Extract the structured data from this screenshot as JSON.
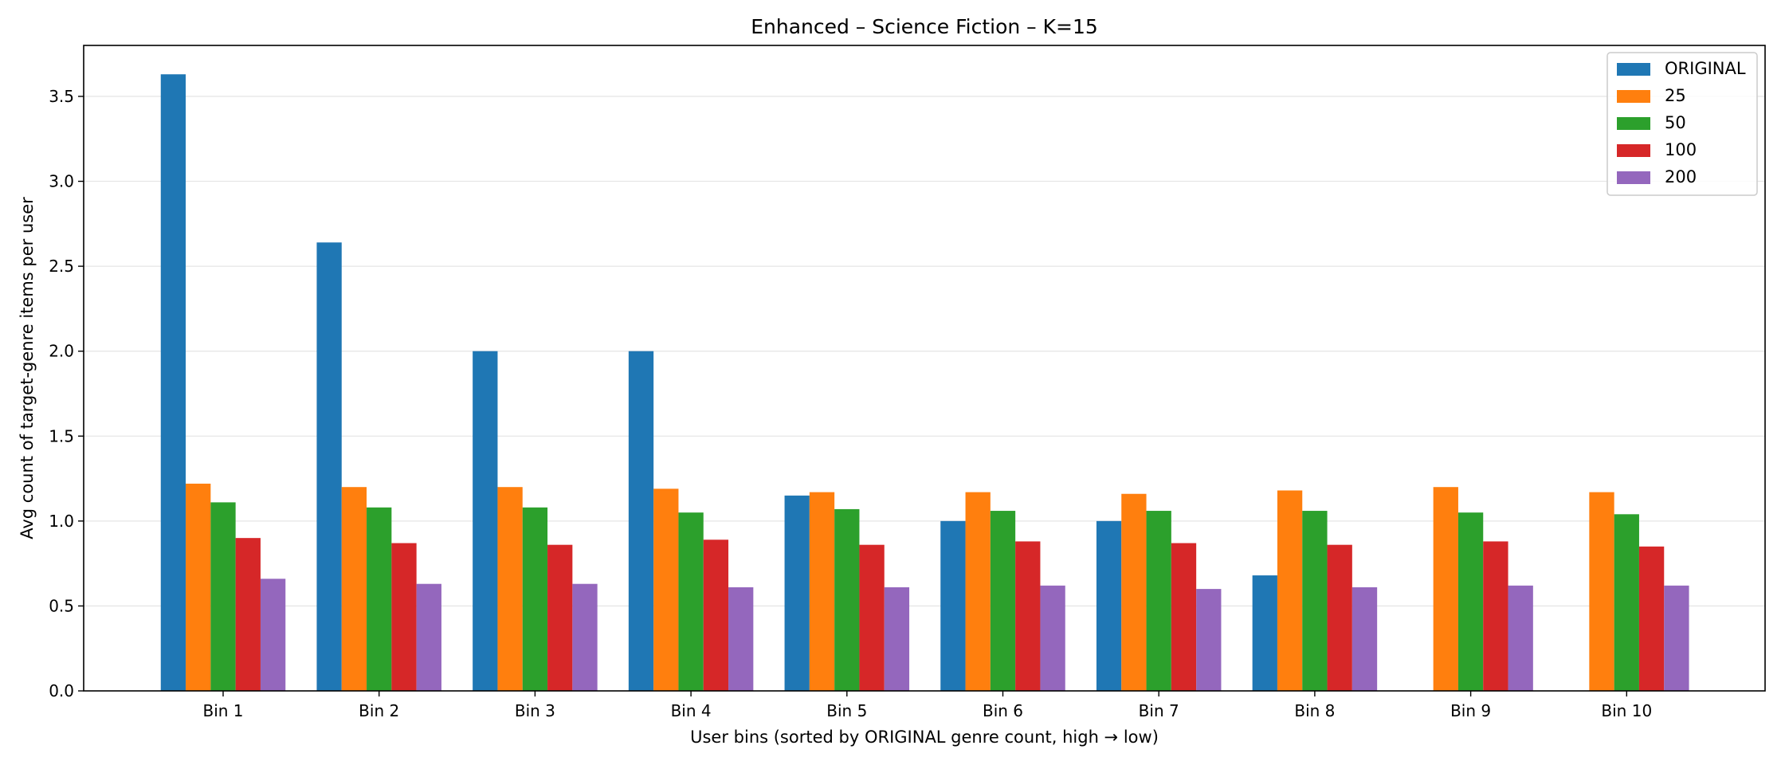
{
  "chart_data": {
    "type": "bar",
    "title": "Enhanced – Science Fiction – K=15",
    "xlabel": "User bins (sorted by ORIGINAL genre count, high → low)",
    "ylabel": "Avg count of target-genre items per user",
    "ylim": [
      0,
      3.8
    ],
    "yticks": [
      "0.0",
      "0.5",
      "1.0",
      "1.5",
      "2.0",
      "2.5",
      "3.0",
      "3.5"
    ],
    "grid": "y-axis, light",
    "legend_position": "top-right",
    "categories": [
      "Bin 1",
      "Bin 2",
      "Bin 3",
      "Bin 4",
      "Bin 5",
      "Bin 6",
      "Bin 7",
      "Bin 8",
      "Bin 9",
      "Bin 10"
    ],
    "series": [
      {
        "name": "ORIGINAL",
        "color": "#1f77b4",
        "values": [
          3.63,
          2.64,
          2.0,
          2.0,
          1.15,
          1.0,
          1.0,
          0.68,
          null,
          null
        ]
      },
      {
        "name": "25",
        "color": "#ff7f0e",
        "values": [
          1.22,
          1.2,
          1.2,
          1.19,
          1.17,
          1.17,
          1.16,
          1.18,
          1.2,
          1.17
        ]
      },
      {
        "name": "50",
        "color": "#2ca02c",
        "values": [
          1.11,
          1.08,
          1.08,
          1.05,
          1.07,
          1.06,
          1.06,
          1.06,
          1.05,
          1.04
        ]
      },
      {
        "name": "100",
        "color": "#d62728",
        "values": [
          0.9,
          0.87,
          0.86,
          0.89,
          0.86,
          0.88,
          0.87,
          0.86,
          0.88,
          0.85
        ]
      },
      {
        "name": "200",
        "color": "#9467bd",
        "values": [
          0.66,
          0.63,
          0.63,
          0.61,
          0.61,
          0.62,
          0.6,
          0.61,
          0.62,
          0.62
        ]
      }
    ]
  }
}
